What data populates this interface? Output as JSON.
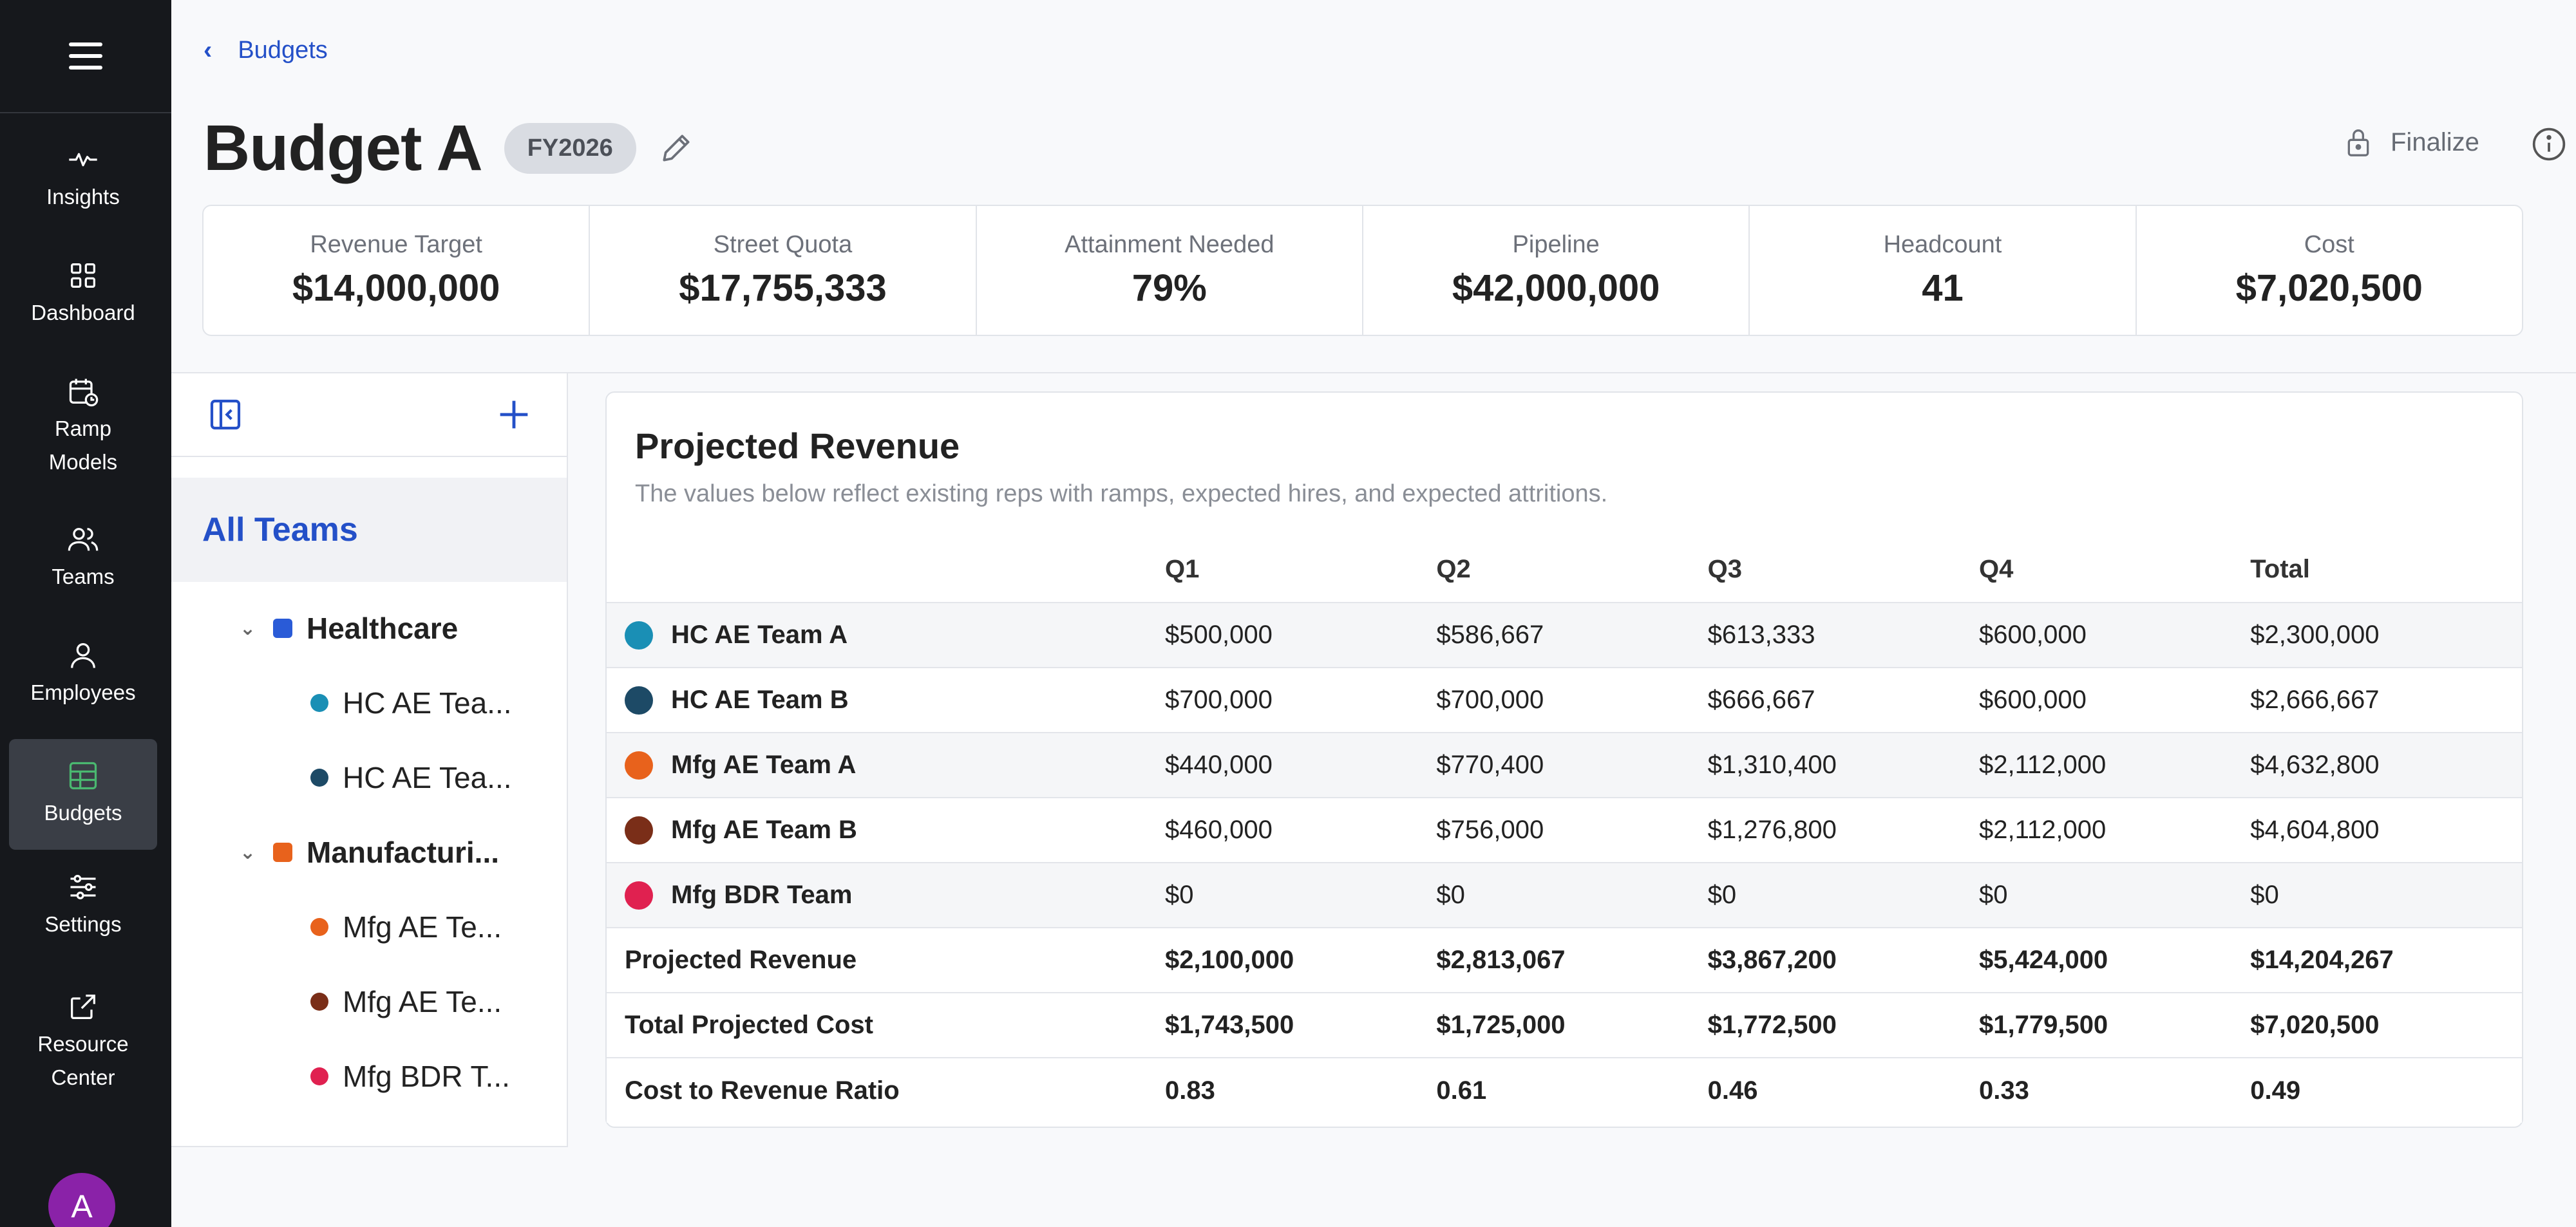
{
  "sidebar": {
    "items": [
      {
        "label": "Insights",
        "icon": "pulse-icon"
      },
      {
        "label": "Dashboard",
        "icon": "grid-icon"
      },
      {
        "label": "Ramp\nModels",
        "icon": "calendar-clock-icon"
      },
      {
        "label": "Teams",
        "icon": "users-icon"
      },
      {
        "label": "Employees",
        "icon": "user-icon"
      },
      {
        "label": "Budgets",
        "icon": "table-icon",
        "active": true
      },
      {
        "label": "Settings",
        "icon": "sliders-icon"
      },
      {
        "label": "Resource\nCenter",
        "icon": "external-link-icon"
      }
    ],
    "avatar_initial": "A",
    "accent_active": "#4ab870"
  },
  "header": {
    "breadcrumb": "Budgets",
    "title": "Budget A",
    "badge": "FY2026",
    "finalize_label": "Finalize"
  },
  "stats": [
    {
      "label": "Revenue Target",
      "value": "$14,000,000"
    },
    {
      "label": "Street Quota",
      "value": "$17,755,333"
    },
    {
      "label": "Attainment Needed",
      "value": "79%"
    },
    {
      "label": "Pipeline",
      "value": "$42,000,000"
    },
    {
      "label": "Headcount",
      "value": "41"
    },
    {
      "label": "Cost",
      "value": "$7,020,500"
    }
  ],
  "tree": {
    "all_label": "All Teams",
    "groups": [
      {
        "label": "Healthcare",
        "color": "#2a5bd7",
        "children": [
          {
            "label": "HC AE Tea...",
            "color": "#1a8fb5"
          },
          {
            "label": "HC AE Tea...",
            "color": "#1d4a66"
          }
        ]
      },
      {
        "label": "Manufacturi...",
        "color": "#e8621c",
        "children": [
          {
            "label": "Mfg AE Te...",
            "color": "#e8621c"
          },
          {
            "label": "Mfg AE Te...",
            "color": "#7a2e18"
          },
          {
            "label": "Mfg BDR T...",
            "color": "#e02150"
          }
        ]
      }
    ]
  },
  "projected": {
    "title": "Projected Revenue",
    "subtitle": "The values below reflect existing reps with ramps, expected hires, and expected attritions.",
    "columns": [
      "Q1",
      "Q2",
      "Q3",
      "Q4",
      "Total"
    ],
    "teams": [
      {
        "name": "HC AE Team A",
        "color": "#1a8fb5",
        "values": [
          "$500,000",
          "$586,667",
          "$613,333",
          "$600,000",
          "$2,300,000"
        ]
      },
      {
        "name": "HC AE Team B",
        "color": "#1d4a66",
        "values": [
          "$700,000",
          "$700,000",
          "$666,667",
          "$600,000",
          "$2,666,667"
        ]
      },
      {
        "name": "Mfg AE Team A",
        "color": "#e8621c",
        "values": [
          "$440,000",
          "$770,400",
          "$1,310,400",
          "$2,112,000",
          "$4,632,800"
        ]
      },
      {
        "name": "Mfg AE Team B",
        "color": "#7a2e18",
        "values": [
          "$460,000",
          "$756,000",
          "$1,276,800",
          "$2,112,000",
          "$4,604,800"
        ]
      },
      {
        "name": "Mfg BDR Team",
        "color": "#e02150",
        "values": [
          "$0",
          "$0",
          "$0",
          "$0",
          "$0"
        ]
      }
    ],
    "totals": [
      {
        "name": "Projected Revenue",
        "values": [
          "$2,100,000",
          "$2,813,067",
          "$3,867,200",
          "$5,424,000",
          "$14,204,267"
        ]
      },
      {
        "name": "Total Projected Cost",
        "values": [
          "$1,743,500",
          "$1,725,000",
          "$1,772,500",
          "$1,779,500",
          "$7,020,500"
        ]
      },
      {
        "name": "Cost to Revenue Ratio",
        "values": [
          "0.83",
          "0.61",
          "0.46",
          "0.33",
          "0.49"
        ]
      }
    ]
  }
}
